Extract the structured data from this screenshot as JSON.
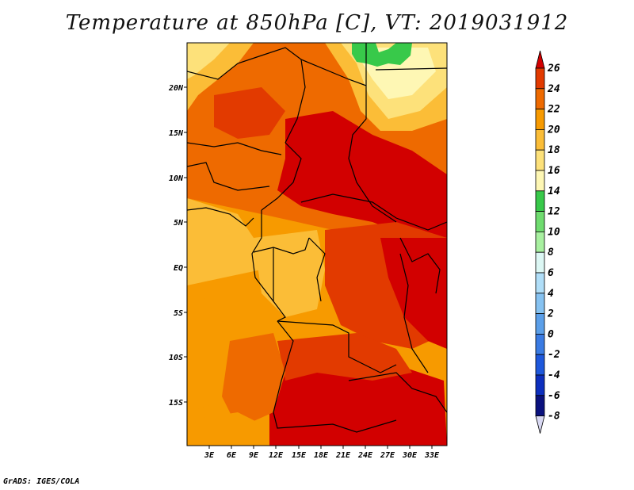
{
  "title": "Temperature at 850hPa [C], VT: 2019031912",
  "credit": "GrADS: IGES/COLA",
  "map": {
    "lat_labels": [
      "20N",
      "15N",
      "10N",
      "5N",
      "EQ",
      "5S",
      "10S",
      "15S"
    ],
    "lon_labels": [
      "3E",
      "6E",
      "9E",
      "12E",
      "15E",
      "18E",
      "21E",
      "24E",
      "27E",
      "30E",
      "33E"
    ]
  },
  "colorbar": {
    "labels": [
      "26",
      "24",
      "22",
      "20",
      "18",
      "16",
      "14",
      "12",
      "10",
      "8",
      "6",
      "4",
      "2",
      "0",
      "-2",
      "-4",
      "-6",
      "-8"
    ],
    "colors": [
      "#d20000",
      "#e23a00",
      "#ee6a00",
      "#f79a00",
      "#fbbd37",
      "#fde17a",
      "#fef7b4",
      "#38c94a",
      "#6fdc6f",
      "#a8f0a0",
      "#dcf7f4",
      "#b0def8",
      "#86c2f1",
      "#5b9fe9",
      "#3a7be3",
      "#1e58dc",
      "#0d2fbe",
      "#0a117e",
      "#d8d8f2"
    ]
  }
}
